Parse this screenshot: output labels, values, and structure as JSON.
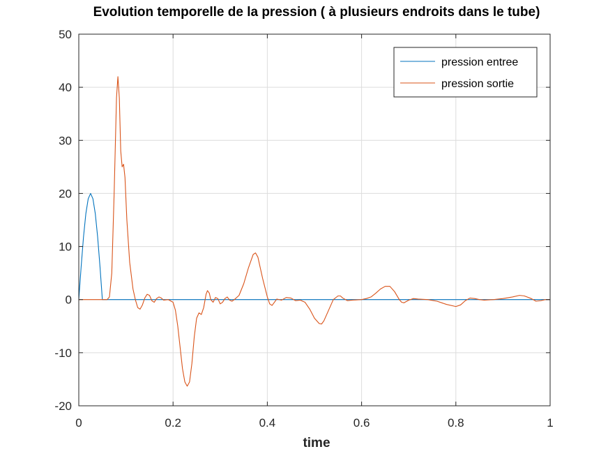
{
  "chart_data": {
    "type": "line",
    "title": "Evolution temporelle de la pression ( à plusieurs endroits dans le tube)",
    "xlabel": "time",
    "ylabel": "",
    "xlim": [
      0,
      1
    ],
    "ylim": [
      -20,
      50
    ],
    "xticks": [
      "0",
      "0.2",
      "0.4",
      "0.6",
      "0.8",
      "1"
    ],
    "yticks": [
      "-20",
      "-10",
      "0",
      "10",
      "20",
      "30",
      "40",
      "50"
    ],
    "grid": true,
    "legend_position": "top-right",
    "series": [
      {
        "name": "pression entree",
        "color": "#0072BD",
        "points": [
          [
            0,
            0
          ],
          [
            0.005,
            6.2
          ],
          [
            0.01,
            11.8
          ],
          [
            0.015,
            16.2
          ],
          [
            0.02,
            19.0
          ],
          [
            0.025,
            20.0
          ],
          [
            0.03,
            19.0
          ],
          [
            0.035,
            16.2
          ],
          [
            0.04,
            11.8
          ],
          [
            0.045,
            6.2
          ],
          [
            0.05,
            0
          ],
          [
            0.1,
            0
          ],
          [
            0.2,
            0
          ],
          [
            0.3,
            0
          ],
          [
            0.4,
            0
          ],
          [
            0.5,
            0
          ],
          [
            0.6,
            0
          ],
          [
            0.7,
            0
          ],
          [
            0.8,
            0
          ],
          [
            0.9,
            0
          ],
          [
            1.0,
            0
          ]
        ]
      },
      {
        "name": "pression sortie",
        "color": "#D95319",
        "points": [
          [
            0,
            0
          ],
          [
            0.05,
            0
          ],
          [
            0.06,
            0
          ],
          [
            0.065,
            0.5
          ],
          [
            0.07,
            5
          ],
          [
            0.075,
            20
          ],
          [
            0.08,
            38
          ],
          [
            0.083,
            42
          ],
          [
            0.086,
            38
          ],
          [
            0.089,
            28
          ],
          [
            0.092,
            25
          ],
          [
            0.095,
            25.5
          ],
          [
            0.098,
            23
          ],
          [
            0.102,
            15
          ],
          [
            0.108,
            7
          ],
          [
            0.115,
            2
          ],
          [
            0.12,
            0
          ],
          [
            0.125,
            -1.5
          ],
          [
            0.13,
            -1.8
          ],
          [
            0.135,
            -1
          ],
          [
            0.14,
            0.3
          ],
          [
            0.145,
            1.0
          ],
          [
            0.15,
            0.8
          ],
          [
            0.155,
            -0.2
          ],
          [
            0.16,
            -0.5
          ],
          [
            0.165,
            0.2
          ],
          [
            0.17,
            0.5
          ],
          [
            0.175,
            0.3
          ],
          [
            0.18,
            -0.1
          ],
          [
            0.19,
            0
          ],
          [
            0.2,
            -0.5
          ],
          [
            0.205,
            -2
          ],
          [
            0.21,
            -5
          ],
          [
            0.215,
            -9
          ],
          [
            0.22,
            -13
          ],
          [
            0.225,
            -15.5
          ],
          [
            0.23,
            -16.3
          ],
          [
            0.235,
            -15.5
          ],
          [
            0.24,
            -12
          ],
          [
            0.245,
            -7
          ],
          [
            0.25,
            -3.5
          ],
          [
            0.255,
            -2.5
          ],
          [
            0.26,
            -2.8
          ],
          [
            0.265,
            -1.5
          ],
          [
            0.27,
            1
          ],
          [
            0.273,
            1.7
          ],
          [
            0.277,
            1.2
          ],
          [
            0.28,
            0
          ],
          [
            0.285,
            -0.5
          ],
          [
            0.29,
            0.4
          ],
          [
            0.295,
            0.2
          ],
          [
            0.3,
            -0.8
          ],
          [
            0.305,
            -0.5
          ],
          [
            0.31,
            0.2
          ],
          [
            0.315,
            0.5
          ],
          [
            0.32,
            -0.1
          ],
          [
            0.325,
            -0.3
          ],
          [
            0.33,
            0
          ],
          [
            0.34,
            0.8
          ],
          [
            0.35,
            3
          ],
          [
            0.36,
            6
          ],
          [
            0.37,
            8.5
          ],
          [
            0.375,
            8.8
          ],
          [
            0.38,
            8
          ],
          [
            0.39,
            4
          ],
          [
            0.4,
            0.5
          ],
          [
            0.405,
            -0.8
          ],
          [
            0.41,
            -1.1
          ],
          [
            0.415,
            -0.5
          ],
          [
            0.42,
            0.1
          ],
          [
            0.43,
            -0.1
          ],
          [
            0.44,
            0.4
          ],
          [
            0.45,
            0.3
          ],
          [
            0.46,
            -0.2
          ],
          [
            0.47,
            -0.1
          ],
          [
            0.48,
            -0.5
          ],
          [
            0.49,
            -1.8
          ],
          [
            0.5,
            -3.5
          ],
          [
            0.51,
            -4.5
          ],
          [
            0.515,
            -4.6
          ],
          [
            0.52,
            -4
          ],
          [
            0.53,
            -2
          ],
          [
            0.54,
            0
          ],
          [
            0.55,
            0.7
          ],
          [
            0.555,
            0.7
          ],
          [
            0.56,
            0.3
          ],
          [
            0.57,
            -0.2
          ],
          [
            0.58,
            -0.1
          ],
          [
            0.6,
            0
          ],
          [
            0.61,
            0.2
          ],
          [
            0.62,
            0.5
          ],
          [
            0.63,
            1.2
          ],
          [
            0.64,
            2
          ],
          [
            0.65,
            2.5
          ],
          [
            0.66,
            2.5
          ],
          [
            0.67,
            1.5
          ],
          [
            0.68,
            0
          ],
          [
            0.685,
            -0.5
          ],
          [
            0.69,
            -0.6
          ],
          [
            0.7,
            -0.1
          ],
          [
            0.71,
            0.2
          ],
          [
            0.72,
            0.1
          ],
          [
            0.74,
            0
          ],
          [
            0.76,
            -0.3
          ],
          [
            0.78,
            -0.9
          ],
          [
            0.8,
            -1.3
          ],
          [
            0.81,
            -1
          ],
          [
            0.82,
            -0.2
          ],
          [
            0.83,
            0.3
          ],
          [
            0.84,
            0.2
          ],
          [
            0.85,
            0
          ],
          [
            0.86,
            -0.1
          ],
          [
            0.88,
            0
          ],
          [
            0.9,
            0.2
          ],
          [
            0.92,
            0.5
          ],
          [
            0.935,
            0.8
          ],
          [
            0.945,
            0.7
          ],
          [
            0.96,
            0.2
          ],
          [
            0.97,
            -0.3
          ],
          [
            0.98,
            -0.2
          ],
          [
            0.99,
            0
          ],
          [
            1.0,
            0
          ]
        ]
      }
    ]
  }
}
